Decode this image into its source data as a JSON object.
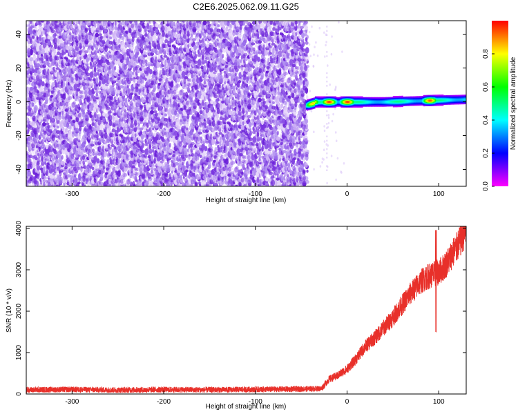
{
  "figure": {
    "title": "C2E6.2025.062.09.11.G25"
  },
  "colorbar": {
    "label": "Normalized spectral amplitude",
    "ticks": [
      "0.0",
      "0.2",
      "0.4",
      "0.6",
      "0.8"
    ],
    "colors": [
      "#ff00ff",
      "#0000ff",
      "#00ffff",
      "#00ff00",
      "#ffff00",
      "#ff0000"
    ]
  },
  "chart_data": [
    {
      "type": "heatmap",
      "title": "",
      "xlabel": "Height of straight line (km)",
      "ylabel": "Frequency (Hz)",
      "xlim": [
        -350,
        130
      ],
      "ylim": [
        -50,
        48
      ],
      "xticks": [
        -300,
        -200,
        -100,
        0,
        100
      ],
      "xtick_labels": [
        "-300",
        "-200",
        "-100",
        "0",
        "100"
      ],
      "yticks": [
        -40,
        -20,
        0,
        20,
        40
      ],
      "ytick_labels": [
        "-40",
        "-20",
        "0",
        "20",
        "40"
      ],
      "colorbar_range": [
        0,
        1
      ],
      "features": {
        "noise_region_x": [
          -350,
          -43
        ],
        "noise_amplitude_approx": [
          0.05,
          0.25
        ],
        "signal_band_x": [
          -45,
          130
        ],
        "signal_frequency_hz": 0,
        "signal_halfwidth_hz": 2,
        "signal_peaks": [
          {
            "x": -38,
            "f": -1,
            "amp": 0.85
          },
          {
            "x": -20,
            "f": 0,
            "amp": 0.98
          },
          {
            "x": 0,
            "f": 0,
            "amp": 0.98
          },
          {
            "x": 90,
            "f": 1.5,
            "amp": 0.95
          }
        ],
        "faint_line_x": -22
      }
    },
    {
      "type": "line",
      "title": "",
      "xlabel": "Height of straight line (km)",
      "ylabel": "SNR (10 * v/v)",
      "xlim": [
        -350,
        130
      ],
      "ylim": [
        0,
        4050
      ],
      "xticks": [
        -300,
        -200,
        -100,
        0,
        100
      ],
      "xtick_labels": [
        "-300",
        "-200",
        "-100",
        "0",
        "100"
      ],
      "yticks": [
        0,
        1000,
        2000,
        3000,
        4000
      ],
      "ytick_labels": [
        "0",
        "1000",
        "2000",
        "3000",
        "4000"
      ],
      "series": [
        {
          "color": "#e8302a",
          "x": [
            -350,
            -300,
            -250,
            -200,
            -150,
            -100,
            -50,
            -28,
            -20,
            -10,
            0,
            10,
            20,
            30,
            40,
            50,
            60,
            70,
            80,
            85,
            90,
            95,
            97,
            100,
            105,
            110,
            115,
            120,
            125,
            130
          ],
          "y": [
            100,
            110,
            95,
            105,
            100,
            110,
            120,
            130,
            350,
            450,
            600,
            850,
            1150,
            1350,
            1600,
            1850,
            2150,
            2450,
            2700,
            2800,
            2850,
            2900,
            2900,
            2950,
            3050,
            3200,
            3400,
            3550,
            3750,
            4000
          ]
        }
      ],
      "noise_band": 70,
      "spike_x": 97,
      "spike_range": [
        1500,
        3950
      ]
    }
  ]
}
